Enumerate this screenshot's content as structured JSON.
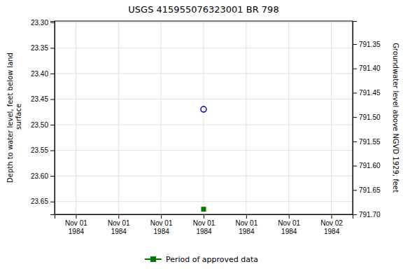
{
  "chart_data": {
    "type": "scatter",
    "title": "USGS 415955076323001 BR   798",
    "y_label": "Depth to water level, feet below land\n surface",
    "y2_label": "Groundwater level above NGVD 1929, feet",
    "categories": [
      "Nov 01\n1984",
      "Nov 01\n1984",
      "Nov 01\n1984",
      "Nov 01\n1984",
      "Nov 01\n1984",
      "Nov 01\n1984",
      "Nov 02\n1984"
    ],
    "series": [
      {
        "color": "#0000cc",
        "marker": "open-circle",
        "values": [
          null,
          null,
          null,
          23.47,
          null,
          null,
          null
        ]
      },
      {
        "name": "Period of approved data",
        "color": "#007700",
        "marker": "square",
        "values": [
          null,
          null,
          null,
          23.665,
          null,
          null,
          null
        ]
      }
    ],
    "ylim": [
      23.675,
      23.2975
    ],
    "yticks": [
      {
        "value": 23.3,
        "label": "23.30"
      },
      23.35,
      {
        "value": 23.4,
        "label": "23.40"
      },
      23.45,
      {
        "value": 23.5,
        "label": "23.50"
      },
      23.55,
      {
        "value": 23.6,
        "label": "23.60"
      },
      23.65
    ],
    "y2lim": [
      791.7,
      791.3025
    ],
    "y2ticks": [
      {
        "value": 791.7,
        "label": "791.70"
      },
      791.65,
      {
        "value": 791.6,
        "label": "791.60"
      },
      791.55,
      {
        "value": 791.5,
        "label": "791.50"
      },
      791.45,
      {
        "value": 791.4,
        "label": "791.40"
      },
      791.35
    ],
    "grid": true,
    "legend": "bottom"
  }
}
